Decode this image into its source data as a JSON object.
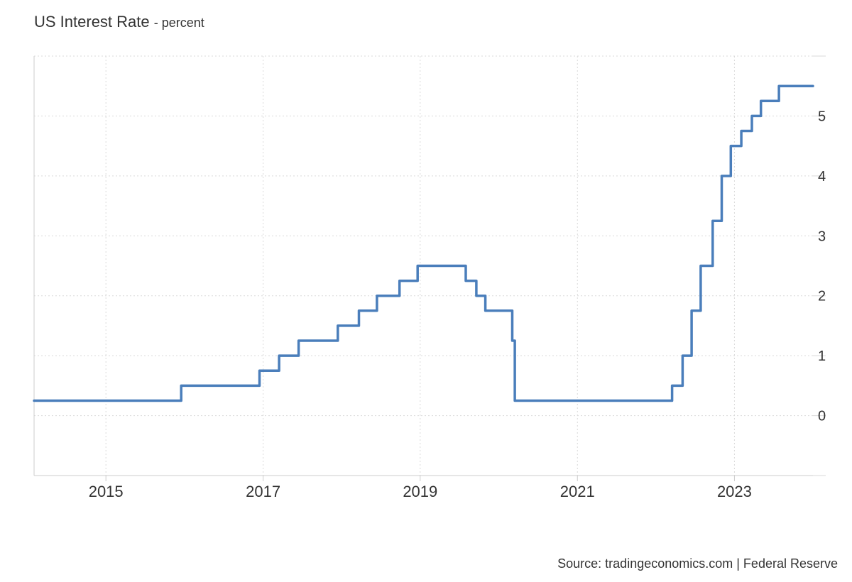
{
  "header": {
    "title": "US Interest Rate",
    "unit": "- percent"
  },
  "footer": {
    "source": "Source: tradingeconomics.com | Federal Reserve"
  },
  "chart_data": {
    "type": "line",
    "title": "US Interest Rate",
    "subtitle": "percent",
    "xlabel": "",
    "ylabel": "",
    "x_ticks": [
      "2015",
      "2017",
      "2019",
      "2021",
      "2023"
    ],
    "y_ticks": [
      0,
      1,
      2,
      3,
      4,
      5
    ],
    "xlim": [
      "2014-02-01",
      "2024-01-01"
    ],
    "ylim": [
      -1,
      6
    ],
    "grid": true,
    "legend": "none",
    "line_color": "#4a7ebb",
    "series": [
      {
        "step": true,
        "points": [
          [
            "2014-02-01",
            0.25
          ],
          [
            "2015-12-17",
            0.5
          ],
          [
            "2016-12-15",
            0.75
          ],
          [
            "2017-03-16",
            1.0
          ],
          [
            "2017-06-15",
            1.25
          ],
          [
            "2017-12-14",
            1.5
          ],
          [
            "2018-03-22",
            1.75
          ],
          [
            "2018-06-14",
            2.0
          ],
          [
            "2018-09-27",
            2.25
          ],
          [
            "2018-12-20",
            2.5
          ],
          [
            "2019-08-01",
            2.25
          ],
          [
            "2019-09-19",
            2.0
          ],
          [
            "2019-10-31",
            1.75
          ],
          [
            "2020-03-04",
            1.25
          ],
          [
            "2020-03-16",
            0.25
          ],
          [
            "2022-03-17",
            0.5
          ],
          [
            "2022-05-05",
            1.0
          ],
          [
            "2022-06-16",
            1.75
          ],
          [
            "2022-07-28",
            2.5
          ],
          [
            "2022-09-22",
            3.25
          ],
          [
            "2022-11-03",
            4.0
          ],
          [
            "2022-12-15",
            4.5
          ],
          [
            "2023-02-02",
            4.75
          ],
          [
            "2023-03-23",
            5.0
          ],
          [
            "2023-05-04",
            5.25
          ],
          [
            "2023-07-27",
            5.5
          ],
          [
            "2024-01-01",
            5.5
          ]
        ]
      }
    ]
  }
}
